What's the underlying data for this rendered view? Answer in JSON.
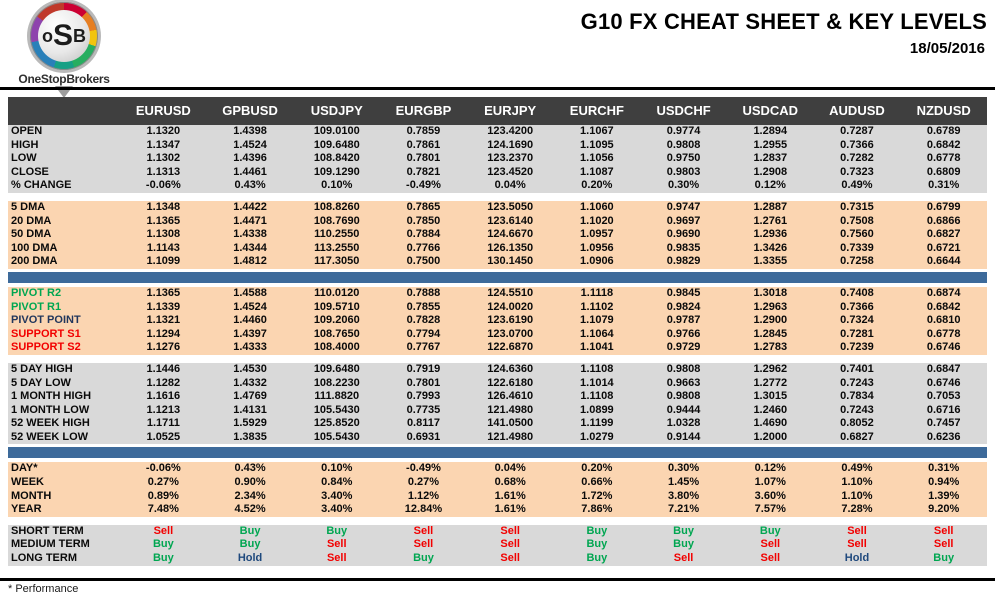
{
  "header": {
    "title": "G10 FX CHEAT SHEET & KEY LEVELS",
    "date": "18/05/2016",
    "logo": {
      "monogram_o": "o",
      "monogram_s": "S",
      "monogram_b": "B",
      "brand": "OneStopBrokers"
    }
  },
  "footer": {
    "note": "* Performance"
  },
  "colors": {
    "header_bg": "#3f3f3f",
    "gray_section": "#d9d9d9",
    "peach_section": "#fbd5b1",
    "blue_bar": "#3d6a9a",
    "green": "#00a651",
    "red": "#f20000",
    "navy": "#1f497d",
    "pivot_label_navy": "#22365c"
  },
  "table": {
    "columns": [
      "EURUSD",
      "GPBUSD",
      "USDJPY",
      "EURGBP",
      "EURJPY",
      "EURCHF",
      "USDCHF",
      "USDCAD",
      "AUDUSD",
      "NZDUSD"
    ],
    "sections": [
      {
        "id": "ohlc",
        "bg": "gray",
        "divider_after": "gap",
        "rows": [
          {
            "label": "OPEN",
            "values": [
              "1.1320",
              "1.4398",
              "109.0100",
              "0.7859",
              "123.4200",
              "1.1067",
              "0.9774",
              "1.2894",
              "0.7287",
              "0.6789"
            ]
          },
          {
            "label": "HIGH",
            "values": [
              "1.1347",
              "1.4524",
              "109.6480",
              "0.7861",
              "124.1690",
              "1.1095",
              "0.9808",
              "1.2955",
              "0.7366",
              "0.6842"
            ]
          },
          {
            "label": "LOW",
            "values": [
              "1.1302",
              "1.4396",
              "108.8420",
              "0.7801",
              "123.2370",
              "1.1056",
              "0.9750",
              "1.2837",
              "0.7282",
              "0.6778"
            ]
          },
          {
            "label": "CLOSE",
            "values": [
              "1.1313",
              "1.4461",
              "109.1290",
              "0.7821",
              "123.4520",
              "1.1087",
              "0.9803",
              "1.2908",
              "0.7323",
              "0.6809"
            ]
          },
          {
            "label": "% CHANGE",
            "values": [
              "-0.06%",
              "0.43%",
              "0.10%",
              "-0.49%",
              "0.04%",
              "0.20%",
              "0.30%",
              "0.12%",
              "0.49%",
              "0.31%"
            ]
          }
        ]
      },
      {
        "id": "dma",
        "bg": "peach",
        "divider_after": "blue",
        "rows": [
          {
            "label": "5 DMA",
            "values": [
              "1.1348",
              "1.4422",
              "108.8260",
              "0.7865",
              "123.5050",
              "1.1060",
              "0.9747",
              "1.2887",
              "0.7315",
              "0.6799"
            ]
          },
          {
            "label": "20 DMA",
            "values": [
              "1.1365",
              "1.4471",
              "108.7690",
              "0.7850",
              "123.6140",
              "1.1020",
              "0.9697",
              "1.2761",
              "0.7508",
              "0.6866"
            ]
          },
          {
            "label": "50 DMA",
            "values": [
              "1.1308",
              "1.4338",
              "110.2550",
              "0.7884",
              "124.6670",
              "1.0957",
              "0.9690",
              "1.2936",
              "0.7560",
              "0.6827"
            ]
          },
          {
            "label": "100 DMA",
            "values": [
              "1.1143",
              "1.4344",
              "113.2550",
              "0.7766",
              "126.1350",
              "1.0956",
              "0.9835",
              "1.3426",
              "0.7339",
              "0.6721"
            ]
          },
          {
            "label": "200 DMA",
            "values": [
              "1.1099",
              "1.4812",
              "117.3050",
              "0.7500",
              "130.1450",
              "1.0906",
              "0.9829",
              "1.3355",
              "0.7258",
              "0.6644"
            ]
          }
        ]
      },
      {
        "id": "pivots",
        "bg": "peach",
        "divider_after": "gap",
        "rows": [
          {
            "label": "PIVOT R2",
            "label_color": "green",
            "values": [
              "1.1365",
              "1.4588",
              "110.0120",
              "0.7888",
              "124.5510",
              "1.1118",
              "0.9845",
              "1.3018",
              "0.7408",
              "0.6874"
            ]
          },
          {
            "label": "PIVOT R1",
            "label_color": "green",
            "values": [
              "1.1339",
              "1.4524",
              "109.5710",
              "0.7855",
              "124.0020",
              "1.1102",
              "0.9824",
              "1.2963",
              "0.7366",
              "0.6842"
            ]
          },
          {
            "label": "PIVOT POINT",
            "label_color": "navy",
            "values": [
              "1.1321",
              "1.4460",
              "109.2060",
              "0.7828",
              "123.6190",
              "1.1079",
              "0.9787",
              "1.2900",
              "0.7324",
              "0.6810"
            ]
          },
          {
            "label": "SUPPORT S1",
            "label_color": "red",
            "values": [
              "1.1294",
              "1.4397",
              "108.7650",
              "0.7794",
              "123.0700",
              "1.1064",
              "0.9766",
              "1.2845",
              "0.7281",
              "0.6778"
            ]
          },
          {
            "label": "SUPPORT S2",
            "label_color": "red",
            "values": [
              "1.1276",
              "1.4333",
              "108.4000",
              "0.7767",
              "122.6870",
              "1.1041",
              "0.9729",
              "1.2783",
              "0.7239",
              "0.6746"
            ]
          }
        ]
      },
      {
        "id": "ranges",
        "bg": "gray",
        "divider_after": "blue",
        "rows": [
          {
            "label": "5 DAY HIGH",
            "values": [
              "1.1446",
              "1.4530",
              "109.6480",
              "0.7919",
              "124.6360",
              "1.1108",
              "0.9808",
              "1.2962",
              "0.7401",
              "0.6847"
            ]
          },
          {
            "label": "5 DAY LOW",
            "values": [
              "1.1282",
              "1.4332",
              "108.2230",
              "0.7801",
              "122.6180",
              "1.1014",
              "0.9663",
              "1.2772",
              "0.7243",
              "0.6746"
            ]
          },
          {
            "label": "1 MONTH HIGH",
            "values": [
              "1.1616",
              "1.4769",
              "111.8820",
              "0.7993",
              "126.4610",
              "1.1108",
              "0.9808",
              "1.3015",
              "0.7834",
              "0.7053"
            ]
          },
          {
            "label": "1 MONTH LOW",
            "values": [
              "1.1213",
              "1.4131",
              "105.5430",
              "0.7735",
              "121.4980",
              "1.0899",
              "0.9444",
              "1.2460",
              "0.7243",
              "0.6716"
            ]
          },
          {
            "label": "52 WEEK HIGH",
            "values": [
              "1.1711",
              "1.5929",
              "125.8520",
              "0.8117",
              "141.0500",
              "1.1199",
              "1.0328",
              "1.4690",
              "0.8052",
              "0.7457"
            ]
          },
          {
            "label": "52 WEEK LOW",
            "values": [
              "1.0525",
              "1.3835",
              "105.5430",
              "0.6931",
              "121.4980",
              "1.0279",
              "0.9144",
              "1.2000",
              "0.6827",
              "0.6236"
            ]
          }
        ]
      },
      {
        "id": "performance",
        "bg": "peach",
        "divider_after": "gap",
        "rows": [
          {
            "label": "DAY*",
            "values": [
              "-0.06%",
              "0.43%",
              "0.10%",
              "-0.49%",
              "0.04%",
              "0.20%",
              "0.30%",
              "0.12%",
              "0.49%",
              "0.31%"
            ]
          },
          {
            "label": "WEEK",
            "values": [
              "0.27%",
              "0.90%",
              "0.84%",
              "0.27%",
              "0.68%",
              "0.66%",
              "1.45%",
              "1.07%",
              "1.10%",
              "0.94%"
            ]
          },
          {
            "label": "MONTH",
            "values": [
              "0.89%",
              "2.34%",
              "3.40%",
              "1.12%",
              "1.61%",
              "1.72%",
              "3.80%",
              "3.60%",
              "1.10%",
              "1.39%"
            ]
          },
          {
            "label": "YEAR",
            "values": [
              "7.48%",
              "4.52%",
              "3.40%",
              "12.84%",
              "1.61%",
              "7.86%",
              "7.21%",
              "7.57%",
              "7.28%",
              "9.20%"
            ]
          }
        ]
      },
      {
        "id": "signals",
        "bg": "gray",
        "divider_after": "none",
        "signal_colors": true,
        "rows": [
          {
            "label": "SHORT TERM",
            "values": [
              "Sell",
              "Buy",
              "Buy",
              "Sell",
              "Sell",
              "Buy",
              "Buy",
              "Buy",
              "Sell",
              "Sell"
            ]
          },
          {
            "label": "MEDIUM TERM",
            "values": [
              "Buy",
              "Buy",
              "Sell",
              "Sell",
              "Sell",
              "Buy",
              "Buy",
              "Sell",
              "Sell",
              "Sell"
            ]
          },
          {
            "label": "LONG TERM",
            "values": [
              "Buy",
              "Hold",
              "Sell",
              "Buy",
              "Sell",
              "Buy",
              "Sell",
              "Sell",
              "Hold",
              "Buy"
            ]
          }
        ]
      }
    ]
  }
}
